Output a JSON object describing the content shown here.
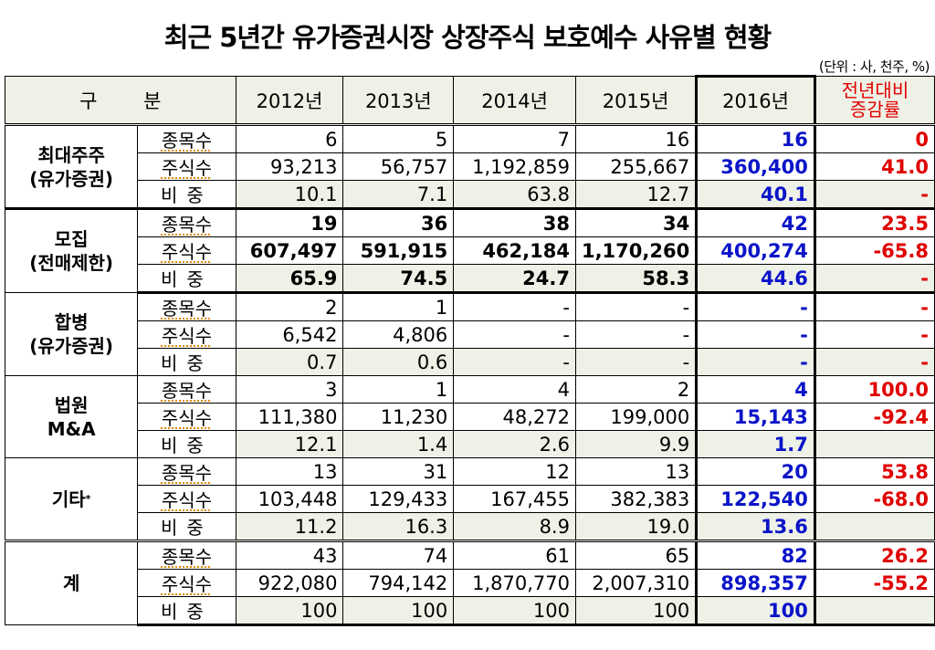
{
  "title": "최근 5년간 유가증권시장 상장주식 보호예수 사유별 현황",
  "unit_note": "(단위 : 사, 천주, %)",
  "header": {
    "category": "구 분",
    "years": [
      "2012년",
      "2013년",
      "2014년",
      "2015년",
      "2016년"
    ],
    "change_line1": "전년대비",
    "change_line2": "증감률"
  },
  "sub_labels": {
    "count": "종목수",
    "shares": "주식수",
    "ratio": "비중"
  },
  "groups": [
    {
      "name_line1": "최대주주",
      "name_line2": "(유가증권)",
      "count": {
        "values": [
          "6",
          "5",
          "7",
          "16",
          "16"
        ],
        "change": "0"
      },
      "shares": {
        "values": [
          "93,213",
          "56,757",
          "1,192,859",
          "255,667",
          "360,400"
        ],
        "change": "41.0"
      },
      "ratio": {
        "values": [
          "10.1",
          "7.1",
          "63.8",
          "12.7",
          "40.1"
        ],
        "change": "-"
      }
    },
    {
      "name_line1": "모집",
      "name_line2": "(전매제한)",
      "count": {
        "values": [
          "19",
          "36",
          "38",
          "34",
          "42"
        ],
        "change": "23.5"
      },
      "shares": {
        "values": [
          "607,497",
          "591,915",
          "462,184",
          "1,170,260",
          "400,274"
        ],
        "change": "-65.8"
      },
      "ratio": {
        "values": [
          "65.9",
          "74.5",
          "24.7",
          "58.3",
          "44.6"
        ],
        "change": "-"
      }
    },
    {
      "name_line1": "합병",
      "name_line2": "(유가증권)",
      "count": {
        "values": [
          "2",
          "1",
          "-",
          "-",
          "-"
        ],
        "change": "-"
      },
      "shares": {
        "values": [
          "6,542",
          "4,806",
          "-",
          "-",
          "-"
        ],
        "change": "-"
      },
      "ratio": {
        "values": [
          "0.7",
          "0.6",
          "-",
          "-",
          "-"
        ],
        "change": "-"
      }
    },
    {
      "name_line1": "법원",
      "name_line2": "M&A",
      "count": {
        "values": [
          "3",
          "1",
          "4",
          "2",
          "4"
        ],
        "change": "100.0"
      },
      "shares": {
        "values": [
          "111,380",
          "11,230",
          "48,272",
          "199,000",
          "15,143"
        ],
        "change": "-92.4"
      },
      "ratio": {
        "values": [
          "12.1",
          "1.4",
          "2.6",
          "9.9",
          "1.7"
        ],
        "change": ""
      }
    },
    {
      "name_line1": "기타",
      "name_line2": "",
      "name_sup": "*",
      "count": {
        "values": [
          "13",
          "31",
          "12",
          "13",
          "20"
        ],
        "change": "53.8"
      },
      "shares": {
        "values": [
          "103,448",
          "129,433",
          "167,455",
          "382,383",
          "122,540"
        ],
        "change": "-68.0"
      },
      "ratio": {
        "values": [
          "11.2",
          "16.3",
          "8.9",
          "19.0",
          "13.6"
        ],
        "change": ""
      }
    },
    {
      "name_line1": "계",
      "name_line2": "",
      "count": {
        "values": [
          "43",
          "74",
          "61",
          "65",
          "82"
        ],
        "change": "26.2"
      },
      "shares": {
        "values": [
          "922,080",
          "794,142",
          "1,870,770",
          "2,007,310",
          "898,357"
        ],
        "change": "-55.2"
      },
      "ratio": {
        "values": [
          "100",
          "100",
          "100",
          "100",
          "100"
        ],
        "change": ""
      }
    }
  ],
  "colors": {
    "header_bg": "#eef1e6",
    "highlight_blue": "#0a14c8",
    "change_red": "#e00000"
  }
}
